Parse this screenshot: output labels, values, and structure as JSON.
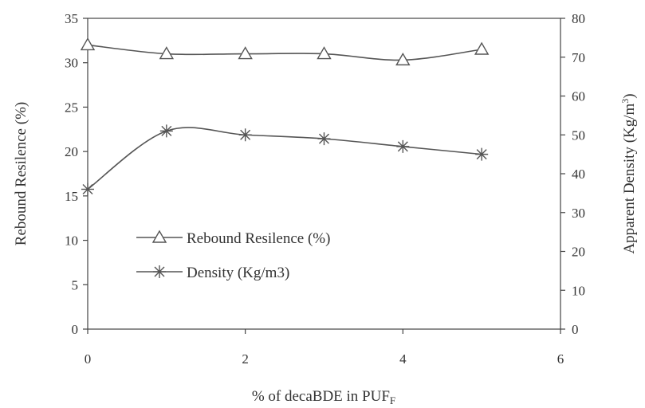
{
  "chart_data": {
    "type": "line",
    "x": [
      0,
      1,
      2,
      3,
      4,
      5
    ],
    "xlim": [
      0,
      6
    ],
    "xticks": [
      0,
      2,
      4,
      6
    ],
    "xlabel": "% of decaBDE in PUF",
    "xlabel_sub": "F",
    "ylabel_left": "Rebound Resilence (%)",
    "ylim_left": [
      0,
      35
    ],
    "yticks_left": [
      0,
      5,
      10,
      15,
      20,
      25,
      30,
      35
    ],
    "ylabel_right": "Apparent Density (Kg/m",
    "ylabel_right_sup": "3",
    "ylabel_right_close": ")",
    "ylim_right": [
      0,
      80
    ],
    "yticks_right": [
      0,
      10,
      20,
      30,
      40,
      50,
      60,
      70,
      80
    ],
    "grid": false,
    "legend_position": "lower-left",
    "series": [
      {
        "name": "Rebound Resilence (%)",
        "axis": "left",
        "marker": "triangle",
        "values": [
          32,
          31,
          31,
          31,
          30.3,
          31.5
        ]
      },
      {
        "name": "Density (Kg/m3)",
        "axis": "right",
        "marker": "asterisk",
        "values": [
          36,
          51,
          50,
          49,
          47,
          45
        ]
      }
    ],
    "colors": {
      "line": "#555555",
      "axis": "#444444",
      "text": "#333333"
    }
  }
}
